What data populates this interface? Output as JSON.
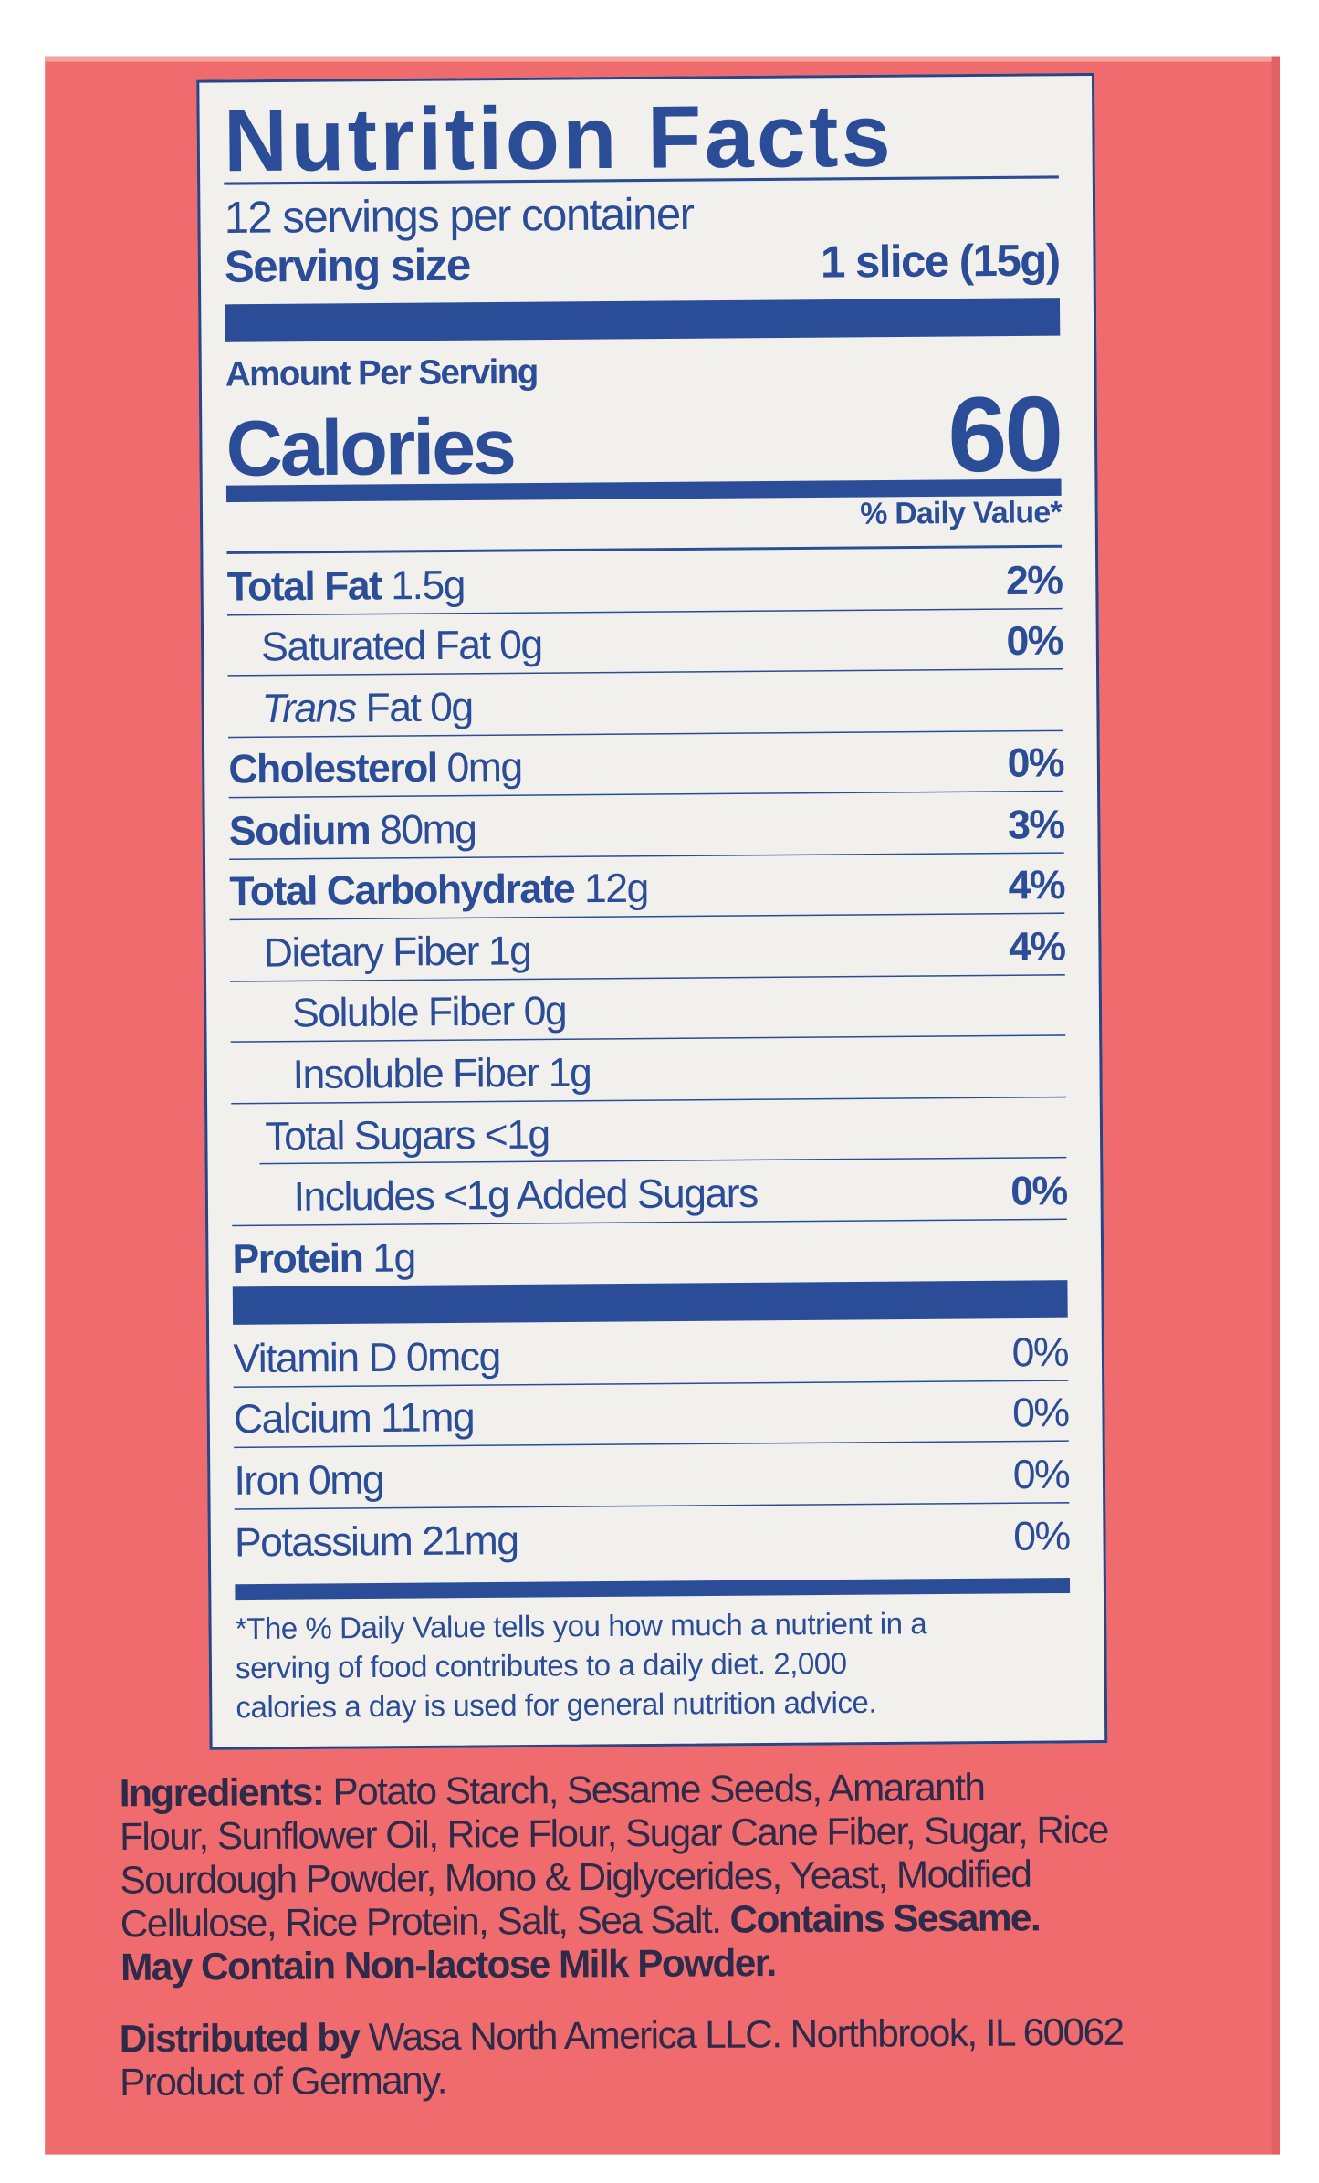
{
  "colors": {
    "box": "#ef6b6d",
    "label_bg": "#f1f0ec",
    "label_text": "#2b4c97",
    "body_text": "#2e2a4a"
  },
  "label": {
    "title": "Nutrition Facts",
    "servings": "12 servings per container",
    "serving_size_label": "Serving size",
    "serving_size_value": "1 slice (15g)",
    "amount_per_serving": "Amount Per Serving",
    "calories_label": "Calories",
    "calories_value": "60",
    "dv_header": "% Daily Value*",
    "nutrients": [
      {
        "bold": "Total Fat",
        "italic": "",
        "text": " 1.5g",
        "dv": "2%",
        "indent": 0
      },
      {
        "bold": "",
        "italic": "",
        "text": "Saturated Fat 0g",
        "dv": "0%",
        "indent": 1
      },
      {
        "bold": "",
        "italic": "Trans",
        "text": " Fat 0g",
        "dv": "",
        "indent": 1
      },
      {
        "bold": "Cholesterol",
        "italic": "",
        "text": " 0mg",
        "dv": "0%",
        "indent": 0
      },
      {
        "bold": "Sodium",
        "italic": "",
        "text": " 80mg",
        "dv": "3%",
        "indent": 0
      },
      {
        "bold": "Total Carbohydrate",
        "italic": "",
        "text": " 12g",
        "dv": "4%",
        "indent": 0
      },
      {
        "bold": "",
        "italic": "",
        "text": "Dietary Fiber 1g",
        "dv": "4%",
        "indent": 1
      },
      {
        "bold": "",
        "italic": "",
        "text": "Soluble Fiber 0g",
        "dv": "",
        "indent": 2
      },
      {
        "bold": "",
        "italic": "",
        "text": "Insoluble Fiber 1g",
        "dv": "",
        "indent": 2
      },
      {
        "bold": "",
        "italic": "",
        "text": "Total Sugars <1g",
        "dv": "",
        "indent": 1
      },
      {
        "bold": "",
        "italic": "",
        "text": "Includes <1g Added Sugars",
        "dv": "0%",
        "indent": 2
      },
      {
        "bold": "Protein",
        "italic": "",
        "text": " 1g",
        "dv": "",
        "indent": 0
      }
    ],
    "vitamins": [
      {
        "text": "Vitamin D 0mcg",
        "dv": "0%"
      },
      {
        "text": "Calcium 11mg",
        "dv": "0%"
      },
      {
        "text": "Iron 0mg",
        "dv": "0%"
      },
      {
        "text": "Potassium 21mg",
        "dv": "0%"
      }
    ],
    "footnote": [
      "*The % Daily Value tells you how much a nutrient in a",
      "serving of food contributes to a daily diet. 2,000",
      "calories a day is used for general nutrition advice."
    ]
  },
  "ingredients": {
    "label": "Ingredients:",
    "lines": [
      " Potato Starch, Sesame Seeds, Amaranth",
      "Flour, Sunflower Oil, Rice Flour, Sugar Cane Fiber, Sugar, Rice",
      "Sourdough Powder, Mono & Diglycerides, Yeast, Modified",
      "Cellulose, Rice Protein, Salt, Sea Salt. "
    ],
    "allergen_1": "Contains Sesame.",
    "allergen_2": "May Contain Non-lactose Milk Powder."
  },
  "distributor": {
    "label": "Distributed by",
    "text": " Wasa North America LLC. Northbrook, IL 60062",
    "origin": "Product of Germany."
  }
}
